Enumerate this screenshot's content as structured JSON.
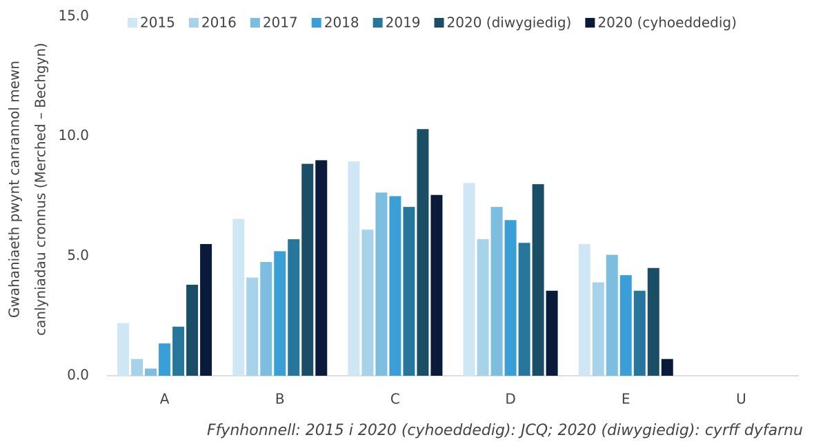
{
  "chart_data": {
    "type": "bar",
    "ylabel": [
      "Gwahaniaeth pwynt canrannol mewn",
      "canlyniadau cronnus (Merched – Bechgyn)"
    ],
    "source": "Ffynhonnell: 2015 i 2020 (cyhoeddedig): JCQ; 2020 (diwygiedig): cyrff dyfarnu",
    "categories": [
      "A",
      "B",
      "C",
      "D",
      "E",
      "U"
    ],
    "series": [
      {
        "name": "2015",
        "color": "#cfe7f5",
        "values": [
          2.2,
          6.55,
          8.95,
          8.05,
          5.5,
          null
        ]
      },
      {
        "name": "2016",
        "color": "#a6d2ea",
        "values": [
          0.7,
          4.1,
          6.1,
          5.7,
          3.9,
          null
        ]
      },
      {
        "name": "2017",
        "color": "#7cbde0",
        "values": [
          0.3,
          4.75,
          7.65,
          7.05,
          5.05,
          null
        ]
      },
      {
        "name": "2018",
        "color": "#3a9fd6",
        "values": [
          1.35,
          5.2,
          7.5,
          6.5,
          4.2,
          null
        ]
      },
      {
        "name": "2019",
        "color": "#27769c",
        "values": [
          2.05,
          5.7,
          7.05,
          5.55,
          3.55,
          null
        ]
      },
      {
        "name": "2020 (diwygiedig)",
        "color": "#1a4e66",
        "values": [
          3.8,
          8.85,
          10.3,
          8.0,
          4.5,
          null
        ]
      },
      {
        "name": "2020 (cyhoeddedig)",
        "color": "#0a1a3a",
        "values": [
          5.5,
          9.0,
          7.55,
          3.55,
          0.7,
          null
        ]
      }
    ],
    "ylim": [
      0,
      15
    ],
    "yticks": [
      {
        "value": 0,
        "label": "0.0"
      },
      {
        "value": 5,
        "label": "5.0"
      },
      {
        "value": 10,
        "label": "10.0"
      },
      {
        "value": 15,
        "label": "15.0"
      }
    ],
    "grid": false,
    "legend": "top"
  }
}
